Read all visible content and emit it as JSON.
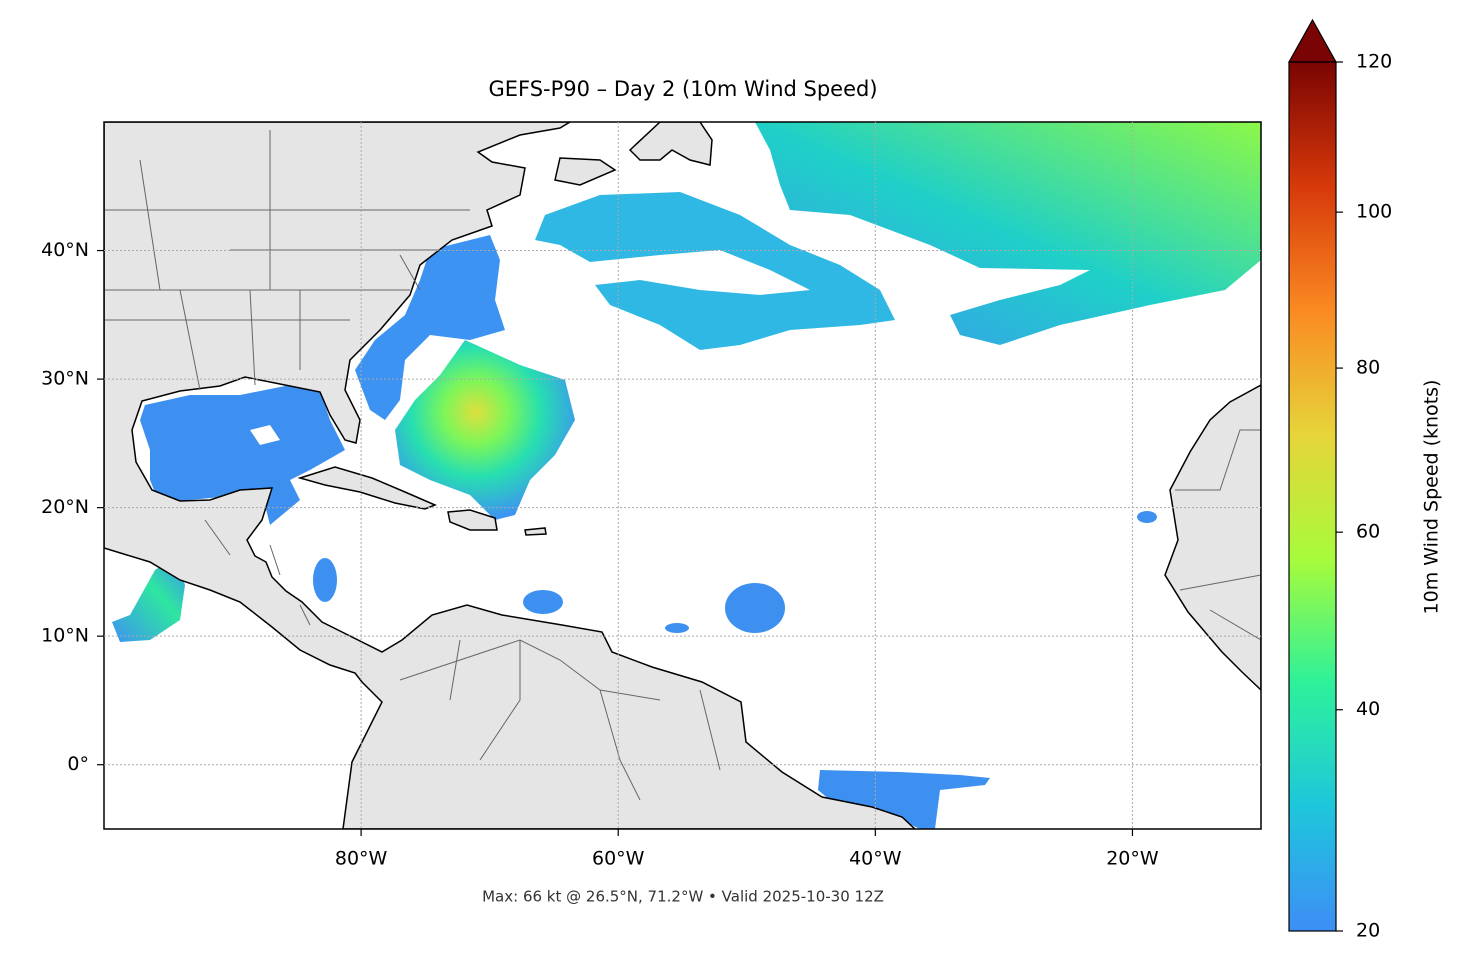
{
  "chart_data": {
    "type": "map",
    "title": "GEFS-P90 – Day 2 (10m Wind Speed)",
    "caption": "Max: 66 kt @ 26.5°N, 71.2°W • Valid 2025-10-30 12Z",
    "xlim": [
      -100,
      -10
    ],
    "ylim": [
      -5,
      50
    ],
    "xticks": [
      {
        "value": -80,
        "label": "80°W"
      },
      {
        "value": -60,
        "label": "60°W"
      },
      {
        "value": -40,
        "label": "40°W"
      },
      {
        "value": -20,
        "label": "20°W"
      }
    ],
    "yticks": [
      {
        "value": 0,
        "label": "0°"
      },
      {
        "value": 10,
        "label": "10°N"
      },
      {
        "value": 20,
        "label": "20°N"
      },
      {
        "value": 30,
        "label": "30°N"
      },
      {
        "value": 40,
        "label": "40°N"
      }
    ],
    "grid": true,
    "colorbar": {
      "label": "10m Wind Speed (knots)",
      "lim": [
        20,
        120
      ],
      "ticks": [
        20,
        40,
        60,
        80,
        100,
        120
      ],
      "scale": "power",
      "gamma": 0.85,
      "extend": "max",
      "colors": [
        "#3e8ef5",
        "#1ec6dc",
        "#2ef19a",
        "#a8fb3a",
        "#e6d43a",
        "#fa8a22",
        "#d7390a",
        "#7a0403"
      ]
    }
  }
}
